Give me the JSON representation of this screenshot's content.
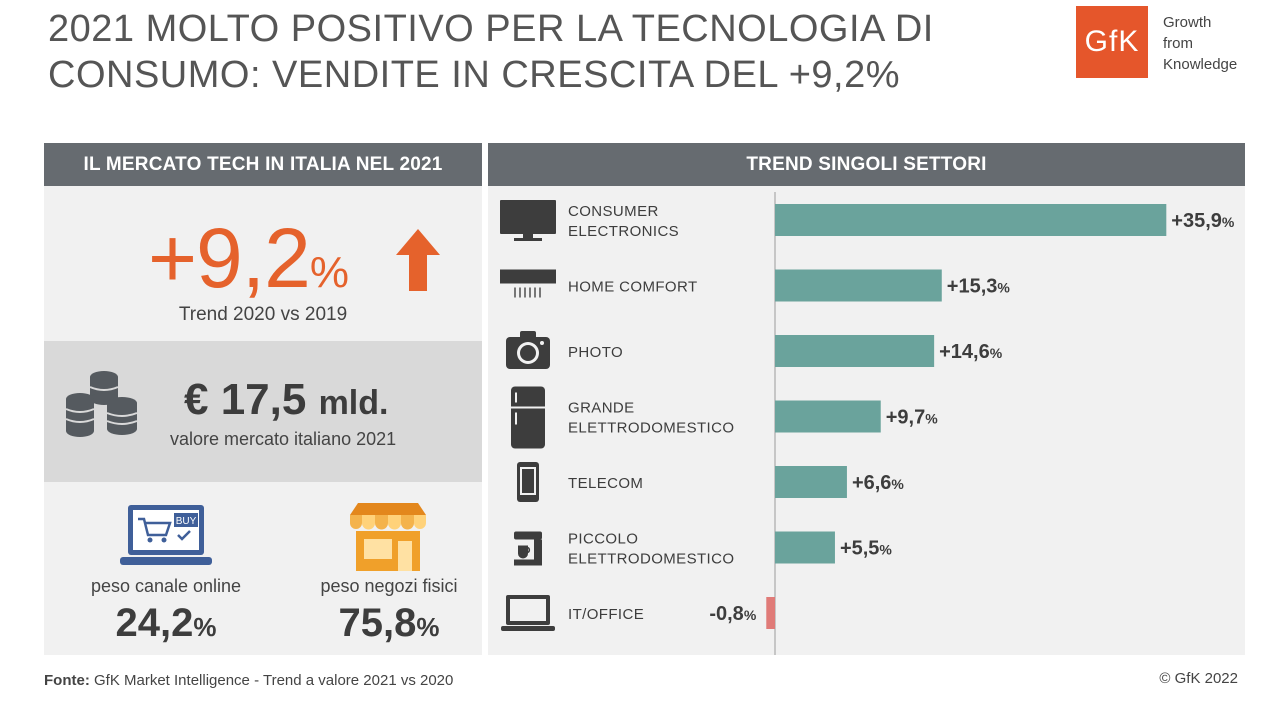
{
  "title": {
    "line1": "2021 MOLTO POSITIVO PER LA TECNOLOGIA DI",
    "line2": "CONSUMO: VENDITE IN CRESCITA DEL +9,2%"
  },
  "brand": {
    "logo_text": "GfK",
    "tagline": [
      "Growth",
      "from",
      "Knowledge"
    ],
    "accent_color": "#e5562b"
  },
  "left_panel": {
    "header": "IL MERCATO TECH IN ITALIA NEL 2021",
    "trend_value": "+9,2",
    "trend_unit": "%",
    "trend_label": "Trend 2020 vs 2019",
    "market_value": "€ 17,5",
    "market_unit": "mld.",
    "market_label": "valore mercato italiano 2021",
    "online": {
      "label": "peso canale online",
      "value": "24,2",
      "unit": "%",
      "icon": "laptop-cart-icon",
      "icon_text": "BUY"
    },
    "store": {
      "label": "peso negozi fisici",
      "value": "75,8",
      "unit": "%",
      "icon": "store-icon"
    }
  },
  "chart_data": {
    "type": "bar",
    "orientation": "horizontal",
    "title": "TREND SINGOLI SETTORI",
    "categories": [
      "CONSUMER ELECTRONICS",
      "HOME COMFORT",
      "PHOTO",
      "GRANDE ELETTRODOMESTICO",
      "TELECOM",
      "PICCOLO ELETTRODOMESTICO",
      "IT/OFFICE"
    ],
    "category_lines": [
      [
        "CONSUMER",
        "ELECTRONICS"
      ],
      [
        "HOME COMFORT"
      ],
      [
        "PHOTO"
      ],
      [
        "GRANDE",
        "ELETTRODOMESTICO"
      ],
      [
        "TELECOM"
      ],
      [
        "PICCOLO",
        "ELETTRODOMESTICO"
      ],
      [
        "IT/OFFICE"
      ]
    ],
    "icons": [
      "tv-icon",
      "air-conditioner-icon",
      "camera-icon",
      "fridge-icon",
      "smartphone-icon",
      "coffee-machine-icon",
      "laptop-icon"
    ],
    "values": [
      35.9,
      15.3,
      14.6,
      9.7,
      6.6,
      5.5,
      -0.8
    ],
    "labels": [
      "+35,9",
      "+15,3",
      "+14,6",
      "+9,7",
      "+6,6",
      "+5,5",
      "-0,8"
    ],
    "unit": "%",
    "xlim": [
      -1,
      37
    ],
    "positive_color": "#6aa39c",
    "negative_color": "#e07b78"
  },
  "footer": {
    "source_label": "Fonte:",
    "source_text": "GfK Market Intelligence  - Trend a valore 2021 vs 2020",
    "copyright": "© GfK 2022"
  }
}
